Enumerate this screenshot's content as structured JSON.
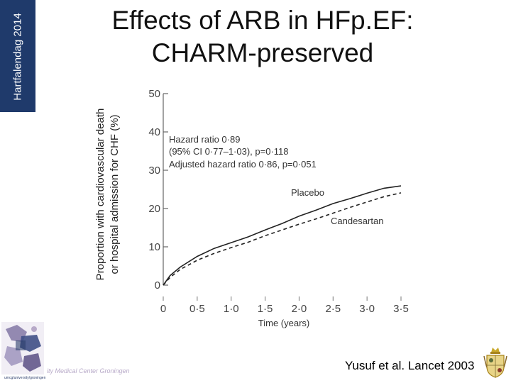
{
  "sidebar": {
    "label": "Hartfalendag 2014",
    "band_color": "#1f3a6b"
  },
  "slide": {
    "title_line1": "Effects of ARB in HFp.EF:",
    "title_line2": "CHARM-preserved"
  },
  "chart_data": {
    "type": "line",
    "ylabel_line1": "Proportion with cardiovascular death",
    "ylabel_line2": "or hospital admission for CHF (%)",
    "xlabel": "Time (years)",
    "xlim": [
      0,
      3.5
    ],
    "ylim": [
      0,
      50
    ],
    "x_ticks": [
      0,
      0.5,
      1.0,
      1.5,
      2.0,
      2.5,
      3.0,
      3.5
    ],
    "x_tick_labels": [
      "0",
      "0·5",
      "1·0",
      "1·5",
      "2·0",
      "2·5",
      "3·0",
      "3·5"
    ],
    "y_ticks": [
      0,
      10,
      20,
      30,
      40,
      50
    ],
    "y_tick_labels": [
      "0",
      "10",
      "20",
      "30",
      "40",
      "50"
    ],
    "annotation_lines": [
      "Hazard ratio 0·89",
      "(95% CI 0·77–1·03), p=0·118",
      "Adjusted hazard ratio 0·86, p=0·051"
    ],
    "series": [
      {
        "name": "Placebo",
        "style": "solid",
        "x": [
          0,
          0.1,
          0.25,
          0.5,
          0.75,
          1.0,
          1.25,
          1.5,
          1.75,
          2.0,
          2.25,
          2.5,
          2.75,
          3.0,
          3.25,
          3.5
        ],
        "y": [
          0,
          2.5,
          4.7,
          7.5,
          9.6,
          11.1,
          12.6,
          14.4,
          16.1,
          18.0,
          19.6,
          21.3,
          22.6,
          24.0,
          25.3,
          25.9
        ]
      },
      {
        "name": "Candesartan",
        "style": "dashed",
        "x": [
          0,
          0.1,
          0.25,
          0.5,
          0.75,
          1.0,
          1.25,
          1.5,
          1.75,
          2.0,
          2.25,
          2.5,
          2.75,
          3.0,
          3.25,
          3.5
        ],
        "y": [
          0,
          2.0,
          4.1,
          6.5,
          8.3,
          9.8,
          11.2,
          12.9,
          14.4,
          15.9,
          17.3,
          18.8,
          20.3,
          21.7,
          23.1,
          24.1
        ]
      }
    ]
  },
  "footer": {
    "umcg_text": "umcg/university/groningen",
    "university_text": "ity Medical Center Groningen",
    "citation": "Yusuf et al. Lancet 2003"
  }
}
